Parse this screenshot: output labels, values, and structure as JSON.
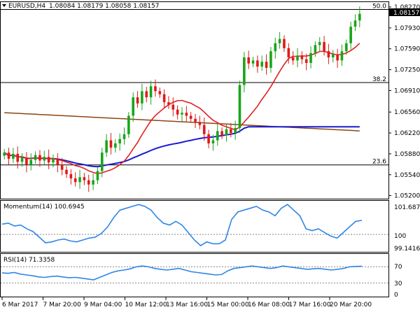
{
  "header": {
    "symbol": "EURUSD,H4",
    "ohlc": "1.08084 1.08179 1.08058 1.08157"
  },
  "main": {
    "last_price": "1.08157",
    "fib_levels": [
      {
        "label": "50.0",
        "price": 1.0823
      },
      {
        "label": "38.2",
        "price": 1.0704
      },
      {
        "label": "23.6",
        "price": 1.057
      }
    ]
  },
  "momentum": {
    "title": "Momentum(14) 100.6945",
    "top_label": "101.6875",
    "mid_label": "100",
    "bottom_label": "99.1416"
  },
  "rsi": {
    "title": "RSI(14) 71.3358",
    "levels": [
      "70",
      "30"
    ],
    "bottom_label": "0"
  },
  "colors": {
    "ema_short": "#e02020",
    "sma_mid": "#1a1ad0",
    "sma_long": "#8b4513",
    "candle_up": "#1aa51a",
    "candle_down": "#e01a1a",
    "indicator": "#2f86e6"
  },
  "chart_data": [
    {
      "type": "candlestick",
      "title": "EURUSD,H4",
      "ylim": [
        1.0515,
        1.0835
      ],
      "y_ticks": [
        "1.08270",
        "1.07930",
        "1.07590",
        "1.07250",
        "1.06910",
        "1.06560",
        "1.06220",
        "1.05880",
        "1.05540",
        "1.05200"
      ],
      "x_ticks": [
        "6 Mar 2017",
        "7 Mar 20:00",
        "9 Mar 04:00",
        "10 Mar 12:00",
        "13 Mar 16:00",
        "15 Mar 00:00",
        "16 Mar 08:00",
        "17 Mar 16:00",
        "20 Mar 20:00"
      ],
      "closes": [
        1.059,
        1.058,
        1.0588,
        1.0575,
        1.0582,
        1.057,
        1.0578,
        1.0586,
        1.0577,
        1.0583,
        1.0574,
        1.058,
        1.057,
        1.0562,
        1.0555,
        1.0548,
        1.0542,
        1.055,
        1.0545,
        1.0538,
        1.0545,
        1.056,
        1.059,
        1.061,
        1.0598,
        1.0605,
        1.0612,
        1.062,
        1.065,
        1.068,
        1.067,
        1.069,
        1.068,
        1.0698,
        1.069,
        1.0685,
        1.0672,
        1.0668,
        1.066,
        1.0652,
        1.0655,
        1.065,
        1.0645,
        1.064,
        1.0635,
        1.062,
        1.0605,
        1.061,
        1.0625,
        1.0618,
        1.0628,
        1.0622,
        1.063,
        1.07,
        1.0745,
        1.0735,
        1.074,
        1.073,
        1.0738,
        1.0728,
        1.0755,
        1.0768,
        1.0775,
        1.076,
        1.0745,
        1.074,
        1.0748,
        1.0742,
        1.0736,
        1.0752,
        1.0765,
        1.077,
        1.0755,
        1.0745,
        1.075,
        1.074,
        1.0755,
        1.0768,
        1.0795,
        1.0805,
        1.0816
      ]
    },
    {
      "type": "line",
      "title": "Momentum(14) 100.6945",
      "ylim": [
        99.1416,
        101.6875
      ],
      "values": [
        100.55,
        100.6,
        100.45,
        100.5,
        100.3,
        100.15,
        99.85,
        99.55,
        99.6,
        99.7,
        99.75,
        99.65,
        99.6,
        99.7,
        99.8,
        99.85,
        100.05,
        100.4,
        100.9,
        101.3,
        101.4,
        101.5,
        101.6,
        101.5,
        101.3,
        100.9,
        100.6,
        100.5,
        100.7,
        100.5,
        100.1,
        99.7,
        99.4,
        99.6,
        99.5,
        99.5,
        99.7,
        100.8,
        101.2,
        101.3,
        101.4,
        101.5,
        101.3,
        101.2,
        101.0,
        101.4,
        101.6,
        101.3,
        101.0,
        100.3,
        100.2,
        100.3,
        100.1,
        99.9,
        99.8,
        100.1,
        100.4,
        100.7,
        100.75
      ]
    },
    {
      "type": "line",
      "title": "RSI(14) 71.3358",
      "ylim": [
        0,
        100
      ],
      "values": [
        55,
        54,
        56,
        52,
        50,
        48,
        45,
        44,
        46,
        47,
        45,
        43,
        44,
        42,
        40,
        38,
        44,
        50,
        56,
        60,
        62,
        65,
        70,
        72,
        70,
        66,
        64,
        62,
        64,
        66,
        62,
        58,
        56,
        54,
        52,
        50,
        51,
        60,
        66,
        68,
        70,
        72,
        70,
        68,
        66,
        68,
        72,
        70,
        68,
        66,
        64,
        65,
        66,
        64,
        62,
        64,
        66,
        70,
        71,
        71.3
      ]
    }
  ]
}
